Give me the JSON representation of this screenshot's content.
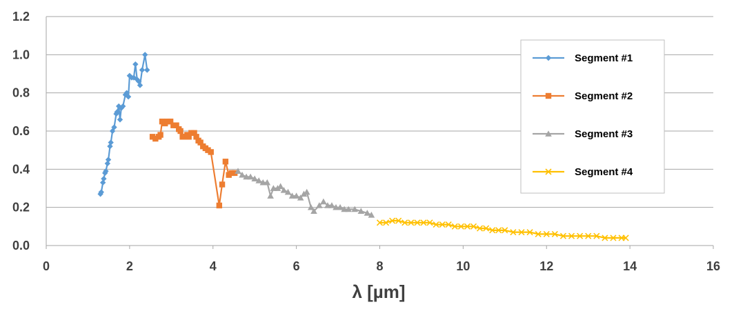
{
  "chart_data": {
    "type": "line",
    "xlabel": "λ [µm]",
    "ylabel": "",
    "xlim": [
      0,
      16
    ],
    "ylim": [
      0.0,
      1.2
    ],
    "xticks": [
      "0",
      "2",
      "4",
      "6",
      "8",
      "10",
      "12",
      "14",
      "16"
    ],
    "yticks": [
      "0.0",
      "0.2",
      "0.4",
      "0.6",
      "0.8",
      "1.0",
      "1.2"
    ],
    "grid": "horizontal",
    "legend_position": "right",
    "series": [
      {
        "name": "Segment #1",
        "color": "#5B9BD5",
        "marker": "diamond",
        "points": [
          [
            1.3,
            0.27
          ],
          [
            1.32,
            0.28
          ],
          [
            1.36,
            0.33
          ],
          [
            1.38,
            0.35
          ],
          [
            1.41,
            0.38
          ],
          [
            1.43,
            0.39
          ],
          [
            1.47,
            0.43
          ],
          [
            1.49,
            0.45
          ],
          [
            1.53,
            0.52
          ],
          [
            1.55,
            0.54
          ],
          [
            1.59,
            0.6
          ],
          [
            1.63,
            0.62
          ],
          [
            1.68,
            0.69
          ],
          [
            1.7,
            0.7
          ],
          [
            1.74,
            0.73
          ],
          [
            1.77,
            0.66
          ],
          [
            1.8,
            0.72
          ],
          [
            1.84,
            0.73
          ],
          [
            1.9,
            0.79
          ],
          [
            1.93,
            0.8
          ],
          [
            1.97,
            0.78
          ],
          [
            2.0,
            0.89
          ],
          [
            2.05,
            0.88
          ],
          [
            2.1,
            0.88
          ],
          [
            2.14,
            0.95
          ],
          [
            2.18,
            0.87
          ],
          [
            2.22,
            0.86
          ],
          [
            2.25,
            0.84
          ],
          [
            2.3,
            0.92
          ],
          [
            2.37,
            1.0
          ],
          [
            2.42,
            0.92
          ]
        ]
      },
      {
        "name": "Segment #2",
        "color": "#ED7D31",
        "marker": "square",
        "points": [
          [
            2.55,
            0.57
          ],
          [
            2.62,
            0.56
          ],
          [
            2.7,
            0.57
          ],
          [
            2.74,
            0.58
          ],
          [
            2.78,
            0.65
          ],
          [
            2.85,
            0.64
          ],
          [
            2.9,
            0.65
          ],
          [
            2.98,
            0.65
          ],
          [
            3.05,
            0.63
          ],
          [
            3.12,
            0.63
          ],
          [
            3.18,
            0.61
          ],
          [
            3.22,
            0.6
          ],
          [
            3.27,
            0.57
          ],
          [
            3.32,
            0.57
          ],
          [
            3.38,
            0.58
          ],
          [
            3.42,
            0.57
          ],
          [
            3.48,
            0.59
          ],
          [
            3.55,
            0.59
          ],
          [
            3.6,
            0.57
          ],
          [
            3.65,
            0.55
          ],
          [
            3.7,
            0.54
          ],
          [
            3.76,
            0.52
          ],
          [
            3.82,
            0.51
          ],
          [
            3.88,
            0.5
          ],
          [
            3.95,
            0.49
          ],
          [
            4.15,
            0.21
          ],
          [
            4.22,
            0.32
          ],
          [
            4.3,
            0.44
          ],
          [
            4.38,
            0.37
          ],
          [
            4.45,
            0.38
          ],
          [
            4.52,
            0.38
          ]
        ]
      },
      {
        "name": "Segment #3",
        "color": "#A5A5A5",
        "marker": "triangle",
        "points": [
          [
            4.6,
            0.39
          ],
          [
            4.7,
            0.37
          ],
          [
            4.8,
            0.36
          ],
          [
            4.9,
            0.36
          ],
          [
            5.0,
            0.35
          ],
          [
            5.1,
            0.34
          ],
          [
            5.2,
            0.33
          ],
          [
            5.3,
            0.33
          ],
          [
            5.38,
            0.26
          ],
          [
            5.45,
            0.3
          ],
          [
            5.55,
            0.3
          ],
          [
            5.62,
            0.31
          ],
          [
            5.7,
            0.29
          ],
          [
            5.8,
            0.28
          ],
          [
            5.9,
            0.26
          ],
          [
            6.0,
            0.26
          ],
          [
            6.1,
            0.25
          ],
          [
            6.18,
            0.27
          ],
          [
            6.25,
            0.28
          ],
          [
            6.35,
            0.2
          ],
          [
            6.42,
            0.18
          ],
          [
            6.55,
            0.21
          ],
          [
            6.65,
            0.23
          ],
          [
            6.75,
            0.21
          ],
          [
            6.85,
            0.21
          ],
          [
            6.95,
            0.2
          ],
          [
            7.05,
            0.2
          ],
          [
            7.15,
            0.19
          ],
          [
            7.25,
            0.19
          ],
          [
            7.4,
            0.19
          ],
          [
            7.55,
            0.18
          ],
          [
            7.7,
            0.17
          ],
          [
            7.8,
            0.16
          ]
        ]
      },
      {
        "name": "Segment #4",
        "color": "#FFC000",
        "marker": "x",
        "points": [
          [
            8.0,
            0.12
          ],
          [
            8.15,
            0.12
          ],
          [
            8.3,
            0.13
          ],
          [
            8.45,
            0.13
          ],
          [
            8.6,
            0.12
          ],
          [
            8.75,
            0.12
          ],
          [
            8.9,
            0.12
          ],
          [
            9.05,
            0.12
          ],
          [
            9.2,
            0.12
          ],
          [
            9.35,
            0.11
          ],
          [
            9.5,
            0.11
          ],
          [
            9.65,
            0.11
          ],
          [
            9.8,
            0.1
          ],
          [
            9.95,
            0.1
          ],
          [
            10.1,
            0.1
          ],
          [
            10.25,
            0.1
          ],
          [
            10.4,
            0.09
          ],
          [
            10.55,
            0.09
          ],
          [
            10.7,
            0.08
          ],
          [
            10.85,
            0.08
          ],
          [
            11.0,
            0.08
          ],
          [
            11.2,
            0.07
          ],
          [
            11.4,
            0.07
          ],
          [
            11.6,
            0.07
          ],
          [
            11.8,
            0.06
          ],
          [
            12.0,
            0.06
          ],
          [
            12.2,
            0.06
          ],
          [
            12.4,
            0.05
          ],
          [
            12.6,
            0.05
          ],
          [
            12.8,
            0.05
          ],
          [
            13.0,
            0.05
          ],
          [
            13.2,
            0.05
          ],
          [
            13.4,
            0.04
          ],
          [
            13.6,
            0.04
          ],
          [
            13.8,
            0.04
          ],
          [
            13.9,
            0.04
          ]
        ]
      }
    ]
  }
}
